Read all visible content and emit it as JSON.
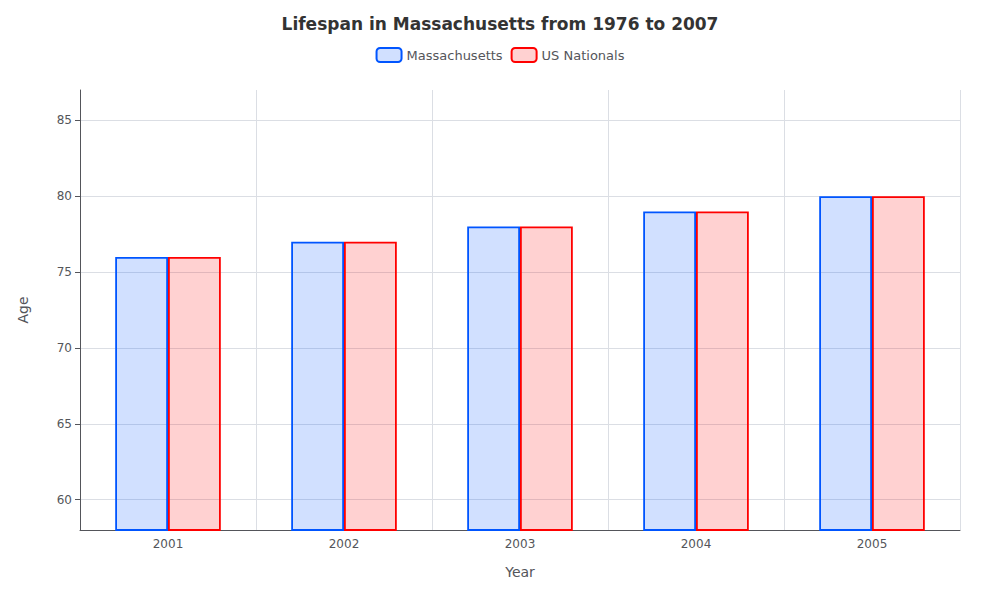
{
  "chart_data": {
    "type": "bar",
    "title": "Lifespan in Massachusetts from 1976 to 2007",
    "xlabel": "Year",
    "ylabel": "Age",
    "categories": [
      "2001",
      "2002",
      "2003",
      "2004",
      "2005"
    ],
    "series": [
      {
        "name": "Massachusetts",
        "color": "#0055ff",
        "values": [
          76,
          77,
          78,
          79,
          80
        ]
      },
      {
        "name": "US Nationals",
        "color": "#ff0000",
        "values": [
          76,
          77,
          78,
          79,
          80
        ]
      }
    ],
    "ylim": [
      58,
      87
    ],
    "yticks": [
      60,
      65,
      70,
      75,
      80,
      85
    ],
    "grid": true,
    "legend": "top"
  }
}
